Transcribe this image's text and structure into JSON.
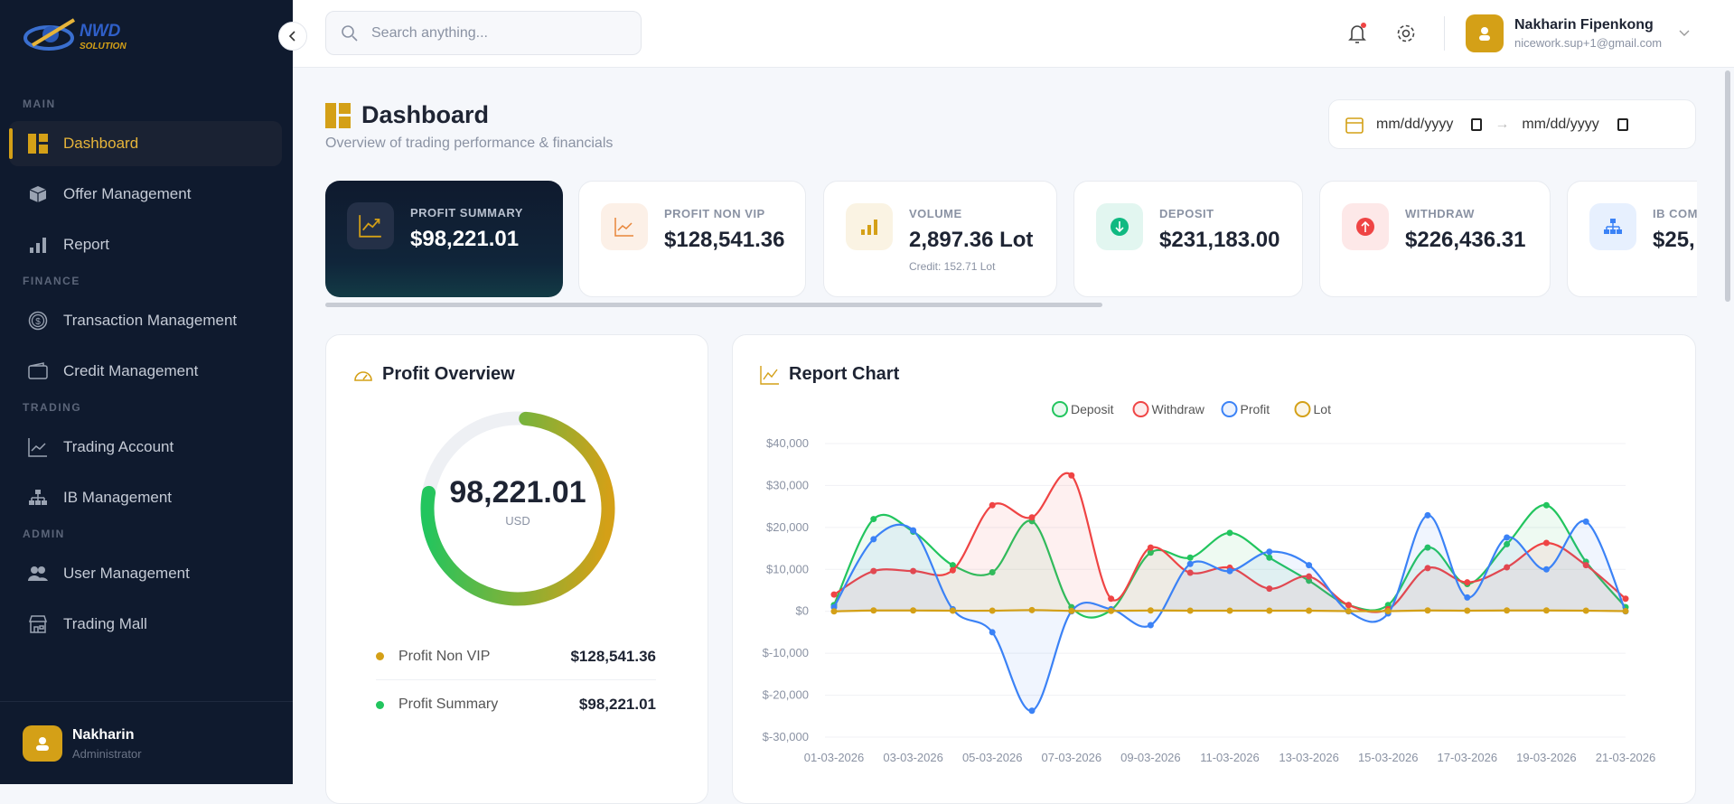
{
  "sidebar": {
    "logo_text": "NWD SOLUTION",
    "sections": [
      {
        "label": "MAIN",
        "items": [
          {
            "label": "Dashboard",
            "icon": "dashboard-icon",
            "active": true
          },
          {
            "label": "Offer Management",
            "icon": "box-icon"
          },
          {
            "label": "Report",
            "icon": "bar-chart-icon"
          }
        ]
      },
      {
        "label": "FINANCE",
        "items": [
          {
            "label": "Transaction Management",
            "icon": "dollar-circle-icon"
          },
          {
            "label": "Credit Management",
            "icon": "wallet-icon"
          }
        ]
      },
      {
        "label": "TRADING",
        "items": [
          {
            "label": "Trading Account",
            "icon": "line-chart-icon"
          },
          {
            "label": "IB Management",
            "icon": "hierarchy-icon"
          }
        ]
      },
      {
        "label": "ADMIN",
        "items": [
          {
            "label": "User Management",
            "icon": "users-icon"
          },
          {
            "label": "Trading Mall",
            "icon": "store-icon"
          }
        ]
      }
    ],
    "user": {
      "name": "Nakharin",
      "role": "Administrator"
    }
  },
  "header": {
    "search_placeholder": "Search anything...",
    "user_name": "Nakharin Fipenkong",
    "user_email": "nicework.sup+1@gmail.com",
    "notification_dot": true
  },
  "page": {
    "title": "Dashboard",
    "subtitle": "Overview of trading performance & financials",
    "date_from": "mm/dd/yyyy",
    "date_to": "mm/dd/yyyy",
    "date_sep": "→"
  },
  "cards": [
    {
      "label": "PROFIT SUMMARY",
      "value": "$98,221.01",
      "icon": "trend-up-icon",
      "color": "#d4a017",
      "dark": true
    },
    {
      "label": "PROFIT NON VIP",
      "value": "$128,541.36",
      "icon": "line-chart-icon",
      "color": "#e8863a"
    },
    {
      "label": "VOLUME",
      "value": "2,897.36 Lot",
      "sub": "Credit: 152.71 Lot",
      "icon": "bar-chart-icon",
      "color": "#d4a017"
    },
    {
      "label": "DEPOSIT",
      "value": "$231,183.00",
      "icon": "arrow-down-circle-icon",
      "color": "#10b981"
    },
    {
      "label": "WITHDRAW",
      "value": "$226,436.31",
      "icon": "arrow-up-circle-icon",
      "color": "#ef4444"
    },
    {
      "label": "IB COM",
      "value": "$25,",
      "icon": "hierarchy-icon",
      "color": "#3b82f6"
    }
  ],
  "profit_overview": {
    "title": "Profit Overview",
    "center_value": "98,221.01",
    "center_unit": "USD",
    "ring_percent": 76.4,
    "rows": [
      {
        "label": "Profit Non VIP",
        "value": "$128,541.36",
        "color": "#d4a017"
      },
      {
        "label": "Profit Summary",
        "value": "$98,221.01",
        "color": "#22c55e"
      }
    ]
  },
  "chart_data": {
    "type": "area",
    "title": "Report Chart",
    "x": [
      "01-03-2026",
      "02-03-2026",
      "03-03-2026",
      "04-03-2026",
      "05-03-2026",
      "06-03-2026",
      "07-03-2026",
      "08-03-2026",
      "09-03-2026",
      "10-03-2026",
      "11-03-2026",
      "12-03-2026",
      "13-03-2026",
      "14-03-2026",
      "15-03-2026",
      "16-03-2026",
      "17-03-2026",
      "18-03-2026",
      "19-03-2026",
      "20-03-2026",
      "21-03-2026"
    ],
    "xtick_labels": [
      "01-03-2026",
      "03-03-2026",
      "05-03-2026",
      "07-03-2026",
      "09-03-2026",
      "11-03-2026",
      "13-03-2026",
      "15-03-2026",
      "17-03-2026",
      "19-03-2026",
      "21-03-2026"
    ],
    "yticks": [
      "$40,000",
      "$30,000",
      "$20,000",
      "$10,000",
      "$0",
      "$-10,000",
      "$-20,000",
      "$-30,000"
    ],
    "ylim": [
      -30000,
      40000
    ],
    "grid": true,
    "legend": "top",
    "series": [
      {
        "name": "Deposit",
        "color": "#22c55e",
        "values": [
          1500,
          22000,
          19000,
          11000,
          9300,
          21500,
          1000,
          300,
          14000,
          12800,
          18700,
          12800,
          7300,
          1500,
          1500,
          15200,
          6500,
          16000,
          25300,
          11800,
          1000
        ]
      },
      {
        "name": "Withdraw",
        "color": "#ef4444",
        "values": [
          4000,
          9600,
          9600,
          9800,
          25300,
          22400,
          32400,
          3000,
          15200,
          9200,
          10400,
          5400,
          8300,
          1500,
          500,
          10300,
          6900,
          10500,
          16300,
          11000,
          3000
        ]
      },
      {
        "name": "Profit",
        "color": "#3b82f6",
        "values": [
          1000,
          17200,
          19300,
          500,
          -5000,
          -23700,
          0,
          500,
          -3300,
          11300,
          9600,
          14200,
          11000,
          0,
          -500,
          22900,
          3300,
          17600,
          10000,
          21400,
          0
        ]
      },
      {
        "name": "Lot",
        "color": "#d4a017",
        "values": [
          0,
          200,
          200,
          150,
          150,
          300,
          100,
          100,
          200,
          150,
          150,
          150,
          150,
          50,
          50,
          200,
          150,
          200,
          200,
          150,
          50
        ]
      }
    ]
  }
}
